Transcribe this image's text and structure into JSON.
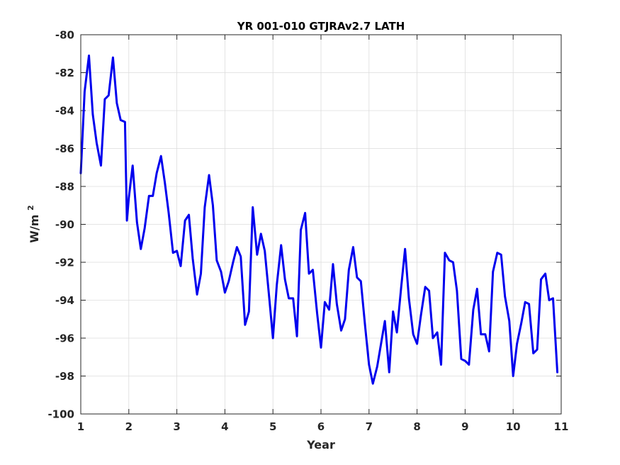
{
  "chart_data": {
    "type": "line",
    "title": "YR 001-010 GTJRAv2.7 LATH",
    "xlabel": "Year",
    "ylabel_main": "W/m",
    "ylabel_sup": "2",
    "xlim": [
      1,
      11
    ],
    "ylim": [
      -100,
      -80
    ],
    "xticks": [
      1,
      2,
      3,
      4,
      5,
      6,
      7,
      8,
      9,
      10,
      11
    ],
    "yticks": [
      -100,
      -98,
      -96,
      -94,
      -92,
      -90,
      -88,
      -86,
      -84,
      -82,
      -80
    ],
    "grid": true,
    "line_color": "#0000ee",
    "series": [
      {
        "values": [
          [
            1.0,
            -87.3
          ],
          [
            1.08,
            -83.0
          ],
          [
            1.17,
            -81.1
          ],
          [
            1.25,
            -84.2
          ],
          [
            1.33,
            -85.7
          ],
          [
            1.42,
            -86.9
          ],
          [
            1.5,
            -83.4
          ],
          [
            1.58,
            -83.2
          ],
          [
            1.67,
            -81.2
          ],
          [
            1.75,
            -83.6
          ],
          [
            1.83,
            -84.5
          ],
          [
            1.92,
            -84.6
          ],
          [
            1.96,
            -89.8
          ],
          [
            2.0,
            -88.6
          ],
          [
            2.08,
            -86.9
          ],
          [
            2.17,
            -89.9
          ],
          [
            2.25,
            -91.3
          ],
          [
            2.33,
            -90.2
          ],
          [
            2.42,
            -88.5
          ],
          [
            2.5,
            -88.5
          ],
          [
            2.58,
            -87.3
          ],
          [
            2.67,
            -86.4
          ],
          [
            2.75,
            -87.8
          ],
          [
            2.83,
            -89.4
          ],
          [
            2.92,
            -91.5
          ],
          [
            3.0,
            -91.4
          ],
          [
            3.08,
            -92.2
          ],
          [
            3.17,
            -89.8
          ],
          [
            3.25,
            -89.5
          ],
          [
            3.33,
            -91.8
          ],
          [
            3.42,
            -93.7
          ],
          [
            3.5,
            -92.6
          ],
          [
            3.58,
            -89.1
          ],
          [
            3.67,
            -87.4
          ],
          [
            3.75,
            -89.0
          ],
          [
            3.83,
            -91.9
          ],
          [
            3.92,
            -92.5
          ],
          [
            4.0,
            -93.6
          ],
          [
            4.08,
            -93.0
          ],
          [
            4.17,
            -92.0
          ],
          [
            4.25,
            -91.2
          ],
          [
            4.33,
            -91.7
          ],
          [
            4.42,
            -95.3
          ],
          [
            4.5,
            -94.6
          ],
          [
            4.58,
            -89.1
          ],
          [
            4.67,
            -91.6
          ],
          [
            4.75,
            -90.5
          ],
          [
            4.83,
            -91.4
          ],
          [
            4.92,
            -93.8
          ],
          [
            5.0,
            -96.0
          ],
          [
            5.08,
            -93.2
          ],
          [
            5.17,
            -91.1
          ],
          [
            5.25,
            -92.9
          ],
          [
            5.33,
            -93.9
          ],
          [
            5.42,
            -93.9
          ],
          [
            5.5,
            -95.9
          ],
          [
            5.58,
            -90.3
          ],
          [
            5.67,
            -89.4
          ],
          [
            5.75,
            -92.6
          ],
          [
            5.83,
            -92.4
          ],
          [
            5.92,
            -94.7
          ],
          [
            6.0,
            -96.5
          ],
          [
            6.08,
            -94.1
          ],
          [
            6.17,
            -94.5
          ],
          [
            6.25,
            -92.1
          ],
          [
            6.33,
            -94.2
          ],
          [
            6.42,
            -95.6
          ],
          [
            6.5,
            -95.0
          ],
          [
            6.58,
            -92.4
          ],
          [
            6.67,
            -91.2
          ],
          [
            6.75,
            -92.8
          ],
          [
            6.83,
            -93.0
          ],
          [
            6.92,
            -95.4
          ],
          [
            7.0,
            -97.4
          ],
          [
            7.08,
            -98.4
          ],
          [
            7.17,
            -97.5
          ],
          [
            7.25,
            -96.3
          ],
          [
            7.33,
            -95.1
          ],
          [
            7.42,
            -97.8
          ],
          [
            7.5,
            -94.6
          ],
          [
            7.58,
            -95.7
          ],
          [
            7.67,
            -93.3
          ],
          [
            7.75,
            -91.3
          ],
          [
            7.83,
            -93.9
          ],
          [
            7.92,
            -95.8
          ],
          [
            8.0,
            -96.3
          ],
          [
            8.08,
            -94.8
          ],
          [
            8.17,
            -93.3
          ],
          [
            8.25,
            -93.5
          ],
          [
            8.33,
            -96.0
          ],
          [
            8.42,
            -95.7
          ],
          [
            8.5,
            -97.4
          ],
          [
            8.58,
            -91.5
          ],
          [
            8.67,
            -91.9
          ],
          [
            8.75,
            -92.0
          ],
          [
            8.83,
            -93.5
          ],
          [
            8.92,
            -97.1
          ],
          [
            9.0,
            -97.2
          ],
          [
            9.08,
            -97.4
          ],
          [
            9.17,
            -94.5
          ],
          [
            9.25,
            -93.4
          ],
          [
            9.33,
            -95.8
          ],
          [
            9.42,
            -95.8
          ],
          [
            9.5,
            -96.7
          ],
          [
            9.58,
            -92.5
          ],
          [
            9.67,
            -91.5
          ],
          [
            9.75,
            -91.6
          ],
          [
            9.83,
            -93.8
          ],
          [
            9.92,
            -95.1
          ],
          [
            10.0,
            -98.0
          ],
          [
            10.08,
            -96.3
          ],
          [
            10.17,
            -95.2
          ],
          [
            10.25,
            -94.1
          ],
          [
            10.33,
            -94.2
          ],
          [
            10.42,
            -96.8
          ],
          [
            10.5,
            -96.6
          ],
          [
            10.58,
            -92.9
          ],
          [
            10.67,
            -92.6
          ],
          [
            10.75,
            -94.0
          ],
          [
            10.83,
            -93.9
          ],
          [
            10.92,
            -97.8
          ]
        ]
      }
    ]
  }
}
